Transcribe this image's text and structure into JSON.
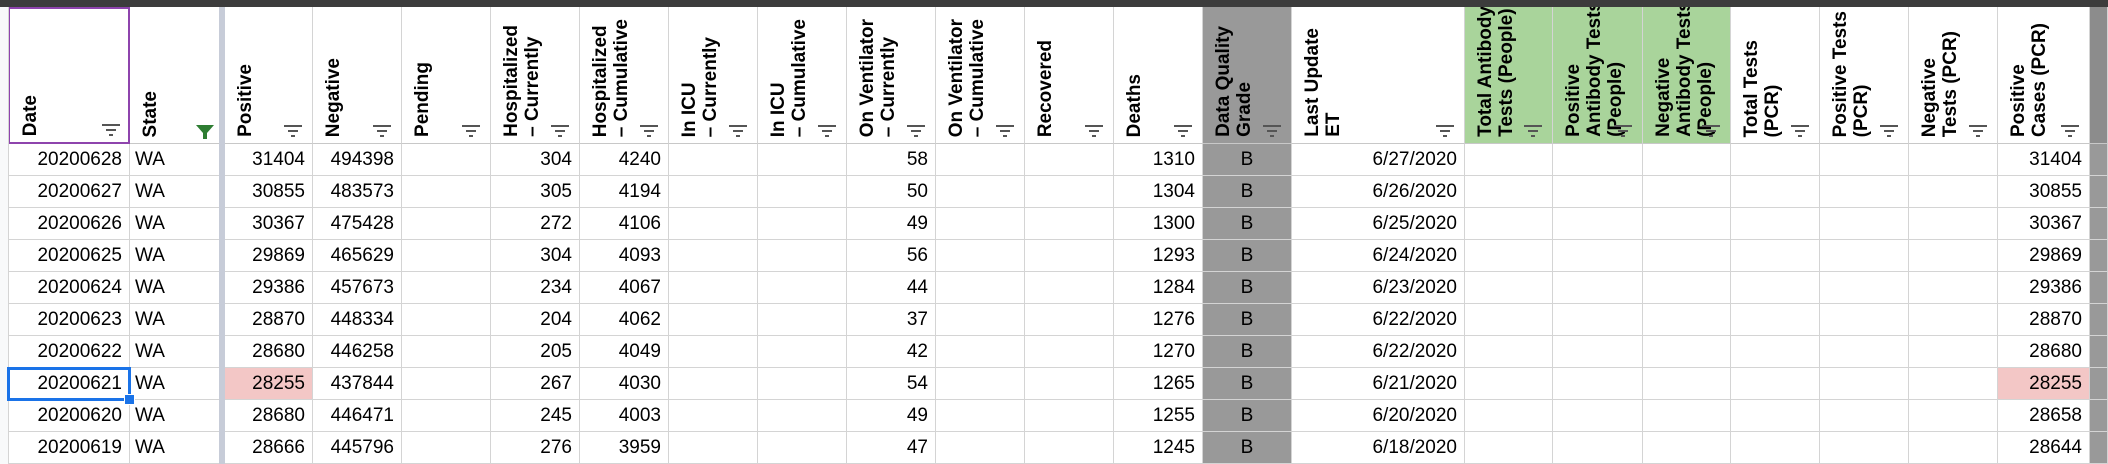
{
  "columns": [
    {
      "key": "date",
      "label": "Date",
      "filter": "active"
    },
    {
      "key": "state",
      "label": "State",
      "filter": "applied"
    },
    {
      "key": "positive",
      "label": "Positive",
      "filter": "active"
    },
    {
      "key": "negative",
      "label": "Negative",
      "filter": "active"
    },
    {
      "key": "pending",
      "label": "Pending",
      "filter": "active"
    },
    {
      "key": "hosp_curr",
      "label": "Hospitalized\n– Currently",
      "filter": "active"
    },
    {
      "key": "hosp_cum",
      "label": "Hospitalized\n– Cumulative",
      "filter": "active"
    },
    {
      "key": "icu_curr",
      "label": "In ICU\n– Currently",
      "filter": "active"
    },
    {
      "key": "icu_cum",
      "label": "In ICU\n– Cumulative",
      "filter": "active"
    },
    {
      "key": "vent_curr",
      "label": "On Ventilator\n– Currently",
      "filter": "active"
    },
    {
      "key": "vent_cum",
      "label": "On Ventilator\n– Cumulative",
      "filter": "active"
    },
    {
      "key": "recovered",
      "label": "Recovered",
      "filter": "active"
    },
    {
      "key": "deaths",
      "label": "Deaths",
      "filter": "active"
    },
    {
      "key": "grade",
      "label": "Data Quality\nGrade",
      "filter": "active"
    },
    {
      "key": "last_update",
      "label": "Last Update\nET",
      "filter": "active"
    },
    {
      "key": "ab_total",
      "label": "Total Antibody\nTests (People)",
      "filter": "active"
    },
    {
      "key": "ab_pos",
      "label": "Positive\nAntibody Tests\n(People)",
      "filter": "active"
    },
    {
      "key": "ab_neg",
      "label": "Negative\nAntibody Tests\n(People)",
      "filter": "active"
    },
    {
      "key": "pcr_total",
      "label": "Total Tests\n(PCR)",
      "filter": "active"
    },
    {
      "key": "pcr_pos_tests",
      "label": "Positive Tests\n(PCR)",
      "filter": "active"
    },
    {
      "key": "pcr_neg_tests",
      "label": "Negative\nTests (PCR)",
      "filter": "active"
    },
    {
      "key": "pcr_pos_cases",
      "label": "Positive\nCases (PCR)",
      "filter": "active"
    },
    {
      "key": "extra",
      "label": "",
      "filter": "none"
    }
  ],
  "rows": [
    {
      "date": "20200628",
      "state": "WA",
      "positive": "31404",
      "negative": "494398",
      "pending": "",
      "hosp_curr": "304",
      "hosp_cum": "4240",
      "icu_curr": "",
      "icu_cum": "",
      "vent_curr": "58",
      "vent_cum": "",
      "recovered": "",
      "deaths": "1310",
      "grade": "B",
      "last_update": "6/27/2020",
      "ab_total": "",
      "ab_pos": "",
      "ab_neg": "",
      "pcr_total": "",
      "pcr_pos_tests": "",
      "pcr_neg_tests": "",
      "pcr_pos_cases": "31404",
      "extra": ""
    },
    {
      "date": "20200627",
      "state": "WA",
      "positive": "30855",
      "negative": "483573",
      "pending": "",
      "hosp_curr": "305",
      "hosp_cum": "4194",
      "icu_curr": "",
      "icu_cum": "",
      "vent_curr": "50",
      "vent_cum": "",
      "recovered": "",
      "deaths": "1304",
      "grade": "B",
      "last_update": "6/26/2020",
      "ab_total": "",
      "ab_pos": "",
      "ab_neg": "",
      "pcr_total": "",
      "pcr_pos_tests": "",
      "pcr_neg_tests": "",
      "pcr_pos_cases": "30855",
      "extra": ""
    },
    {
      "date": "20200626",
      "state": "WA",
      "positive": "30367",
      "negative": "475428",
      "pending": "",
      "hosp_curr": "272",
      "hosp_cum": "4106",
      "icu_curr": "",
      "icu_cum": "",
      "vent_curr": "49",
      "vent_cum": "",
      "recovered": "",
      "deaths": "1300",
      "grade": "B",
      "last_update": "6/25/2020",
      "ab_total": "",
      "ab_pos": "",
      "ab_neg": "",
      "pcr_total": "",
      "pcr_pos_tests": "",
      "pcr_neg_tests": "",
      "pcr_pos_cases": "30367",
      "extra": ""
    },
    {
      "date": "20200625",
      "state": "WA",
      "positive": "29869",
      "negative": "465629",
      "pending": "",
      "hosp_curr": "304",
      "hosp_cum": "4093",
      "icu_curr": "",
      "icu_cum": "",
      "vent_curr": "56",
      "vent_cum": "",
      "recovered": "",
      "deaths": "1293",
      "grade": "B",
      "last_update": "6/24/2020",
      "ab_total": "",
      "ab_pos": "",
      "ab_neg": "",
      "pcr_total": "",
      "pcr_pos_tests": "",
      "pcr_neg_tests": "",
      "pcr_pos_cases": "29869",
      "extra": ""
    },
    {
      "date": "20200624",
      "state": "WA",
      "positive": "29386",
      "negative": "457673",
      "pending": "",
      "hosp_curr": "234",
      "hosp_cum": "4067",
      "icu_curr": "",
      "icu_cum": "",
      "vent_curr": "44",
      "vent_cum": "",
      "recovered": "",
      "deaths": "1284",
      "grade": "B",
      "last_update": "6/23/2020",
      "ab_total": "",
      "ab_pos": "",
      "ab_neg": "",
      "pcr_total": "",
      "pcr_pos_tests": "",
      "pcr_neg_tests": "",
      "pcr_pos_cases": "29386",
      "extra": ""
    },
    {
      "date": "20200623",
      "state": "WA",
      "positive": "28870",
      "negative": "448334",
      "pending": "",
      "hosp_curr": "204",
      "hosp_cum": "4062",
      "icu_curr": "",
      "icu_cum": "",
      "vent_curr": "37",
      "vent_cum": "",
      "recovered": "",
      "deaths": "1276",
      "grade": "B",
      "last_update": "6/22/2020",
      "ab_total": "",
      "ab_pos": "",
      "ab_neg": "",
      "pcr_total": "",
      "pcr_pos_tests": "",
      "pcr_neg_tests": "",
      "pcr_pos_cases": "28870",
      "extra": ""
    },
    {
      "date": "20200622",
      "state": "WA",
      "positive": "28680",
      "negative": "446258",
      "pending": "",
      "hosp_curr": "205",
      "hosp_cum": "4049",
      "icu_curr": "",
      "icu_cum": "",
      "vent_curr": "42",
      "vent_cum": "",
      "recovered": "",
      "deaths": "1270",
      "grade": "B",
      "last_update": "6/22/2020",
      "ab_total": "",
      "ab_pos": "",
      "ab_neg": "",
      "pcr_total": "",
      "pcr_pos_tests": "",
      "pcr_neg_tests": "",
      "pcr_pos_cases": "28680",
      "extra": ""
    },
    {
      "date": "20200621",
      "state": "WA",
      "positive": "28255",
      "negative": "437844",
      "pending": "",
      "hosp_curr": "267",
      "hosp_cum": "4030",
      "icu_curr": "",
      "icu_cum": "",
      "vent_curr": "54",
      "vent_cum": "",
      "recovered": "",
      "deaths": "1265",
      "grade": "B",
      "last_update": "6/21/2020",
      "ab_total": "",
      "ab_pos": "",
      "ab_neg": "",
      "pcr_total": "",
      "pcr_pos_tests": "",
      "pcr_neg_tests": "",
      "pcr_pos_cases": "28255",
      "extra": ""
    },
    {
      "date": "20200620",
      "state": "WA",
      "positive": "28680",
      "negative": "446471",
      "pending": "",
      "hosp_curr": "245",
      "hosp_cum": "4003",
      "icu_curr": "",
      "icu_cum": "",
      "vent_curr": "49",
      "vent_cum": "",
      "recovered": "",
      "deaths": "1255",
      "grade": "B",
      "last_update": "6/20/2020",
      "ab_total": "",
      "ab_pos": "",
      "ab_neg": "",
      "pcr_total": "",
      "pcr_pos_tests": "",
      "pcr_neg_tests": "",
      "pcr_pos_cases": "28658",
      "extra": ""
    },
    {
      "date": "20200619",
      "state": "WA",
      "positive": "28666",
      "negative": "445796",
      "pending": "",
      "hosp_curr": "276",
      "hosp_cum": "3959",
      "icu_curr": "",
      "icu_cum": "",
      "vent_curr": "47",
      "vent_cum": "",
      "recovered": "",
      "deaths": "1245",
      "grade": "B",
      "last_update": "6/18/2020",
      "ab_total": "",
      "ab_pos": "",
      "ab_neg": "",
      "pcr_total": "",
      "pcr_pos_tests": "",
      "pcr_neg_tests": "",
      "pcr_pos_cases": "28644",
      "extra": ""
    }
  ],
  "selected_cell": {
    "row": 7,
    "column": "date"
  },
  "highlighted_cells": [
    {
      "row": 7,
      "column": "positive"
    },
    {
      "row": 7,
      "column": "pcr_pos_cases"
    }
  ],
  "colors": {
    "selection": "#1a73e8",
    "highlight": "#f3c7c6",
    "antibody_header": "#a9d49b",
    "grade_column": "#999999",
    "filter_icon": "#2e7d32",
    "frozen_separator": "#c7ccd8"
  }
}
